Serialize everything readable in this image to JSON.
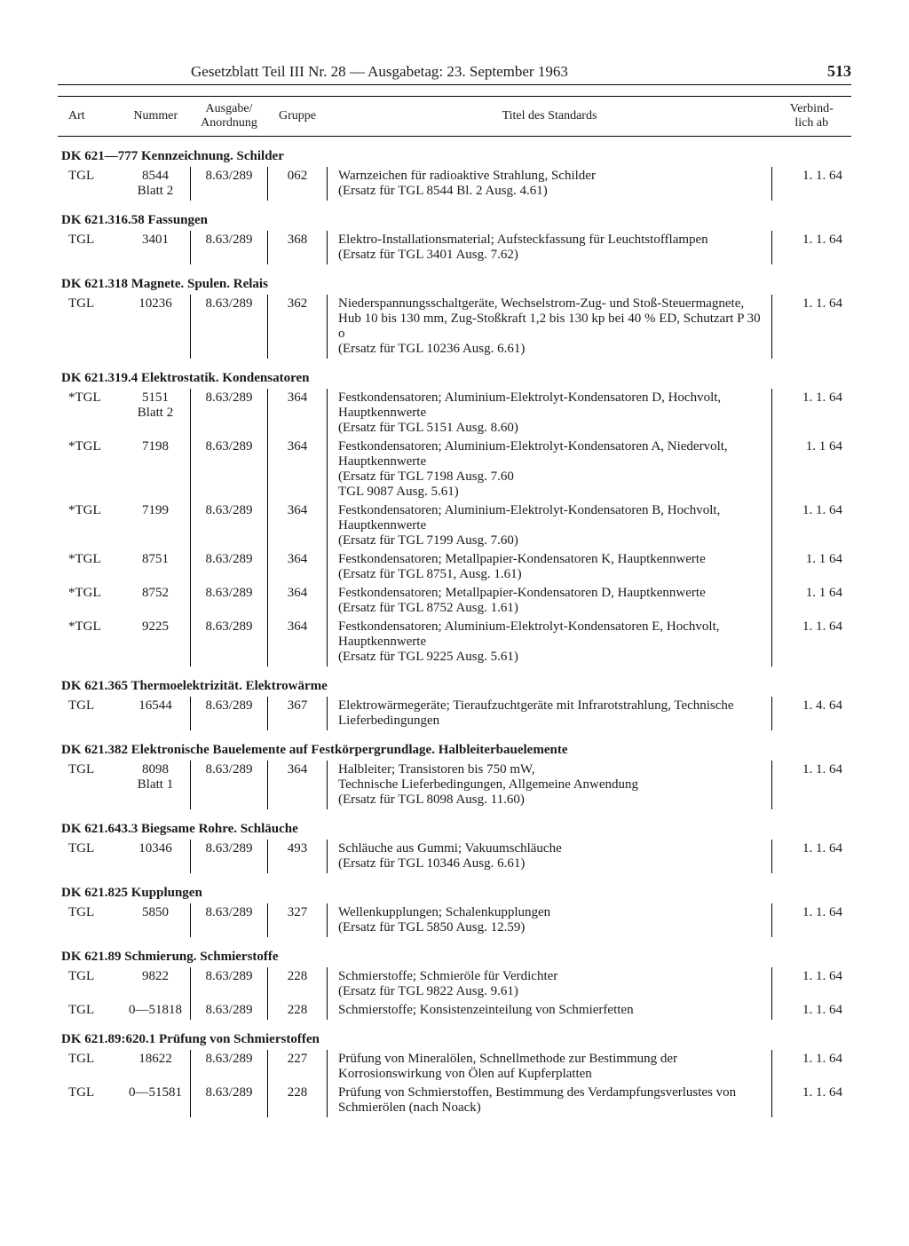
{
  "header": {
    "title": "Gesetzblatt Teil III Nr. 28 — Ausgabetag: 23. September 1963",
    "page_number": "513"
  },
  "columns": {
    "art": "Art",
    "nummer": "Nummer",
    "ausgabe": "Ausgabe/\nAnordnung",
    "gruppe": "Gruppe",
    "titel": "Titel des Standards",
    "verbindlich": "Verbind-\nlich ab"
  },
  "sections": [
    {
      "heading": "DK 621—777 Kennzeichnung. Schilder",
      "rows": [
        {
          "art": "TGL",
          "num": "8544\nBlatt 2",
          "ausg": "8.63/289",
          "grp": "062",
          "titel": "Warnzeichen für radioaktive Strahlung, Schilder\n(Ersatz für TGL 8544 Bl. 2 Ausg. 4.61)",
          "verb": "1.  1. 64"
        }
      ]
    },
    {
      "heading": "DK 621.316.58 Fassungen",
      "rows": [
        {
          "art": "TGL",
          "num": "3401",
          "ausg": "8.63/289",
          "grp": "368",
          "titel": "Elektro-Installationsmaterial; Aufsteckfassung für Leuchtstofflampen\n(Ersatz für TGL 3401 Ausg. 7.62)",
          "verb": "1.  1. 64"
        }
      ]
    },
    {
      "heading": "DK 621.318 Magnete. Spulen. Relais",
      "rows": [
        {
          "art": "TGL",
          "num": "10236",
          "ausg": "8.63/289",
          "grp": "362",
          "titel": "Niederspannungsschaltgeräte, Wechselstrom-Zug- und Stoß-Steuermagnete, Hub 10 bis 130 mm, Zug-Stoßkraft 1,2 bis 130 kp bei 40 % ED, Schutzart P 30 o\n(Ersatz für TGL 10236 Ausg. 6.61)",
          "verb": "1.  1. 64"
        }
      ]
    },
    {
      "heading": "DK 621.319.4 Elektrostatik. Kondensatoren",
      "rows": [
        {
          "art": "*TGL",
          "num": "5151\nBlatt 2",
          "ausg": "8.63/289",
          "grp": "364",
          "titel": "Festkondensatoren; Aluminium-Elektrolyt-Kondensatoren D, Hochvolt, Hauptkennwerte\n(Ersatz für TGL 5151 Ausg. 8.60)",
          "verb": "1.  1. 64"
        },
        {
          "art": "*TGL",
          "num": "7198",
          "ausg": "8.63/289",
          "grp": "364",
          "titel": "Festkondensatoren; Aluminium-Elektrolyt-Kondensatoren A, Niedervolt, Hauptkennwerte\n(Ersatz für TGL 7198 Ausg. 7.60\n                    TGL 9087 Ausg. 5.61)",
          "verb": "1.  1  64"
        },
        {
          "art": "*TGL",
          "num": "7199",
          "ausg": "8.63/289",
          "grp": "364",
          "titel": "Festkondensatoren; Aluminium-Elektrolyt-Kondensatoren B, Hochvolt, Hauptkennwerte\n(Ersatz für TGL 7199 Ausg. 7.60)",
          "verb": "1.  1. 64"
        },
        {
          "art": "*TGL",
          "num": "8751",
          "ausg": "8.63/289",
          "grp": "364",
          "titel": "Festkondensatoren; Metallpapier-Kondensatoren K, Hauptkennwerte\n(Ersatz für TGL 8751, Ausg. 1.61)",
          "verb": "1.  1  64"
        },
        {
          "art": "*TGL",
          "num": "8752",
          "ausg": "8.63/289",
          "grp": "364",
          "titel": "Festkondensatoren; Metallpapier-Kondensatoren D, Hauptkennwerte\n(Ersatz für TGL 8752 Ausg. 1.61)",
          "verb": "1.  1  64"
        },
        {
          "art": "*TGL",
          "num": "9225",
          "ausg": "8.63/289",
          "grp": "364",
          "titel": "Festkondensatoren; Aluminium-Elektrolyt-Kondensatoren E, Hochvolt, Hauptkennwerte\n(Ersatz für TGL 9225 Ausg. 5.61)",
          "verb": "1.  1. 64"
        }
      ]
    },
    {
      "heading": "DK 621.365 Thermoelektrizität. Elektrowärme",
      "rows": [
        {
          "art": "TGL",
          "num": "16544",
          "ausg": "8.63/289",
          "grp": "367",
          "titel": "Elektrowärmegeräte; Tieraufzuchtgeräte mit Infrarotstrahlung, Technische Lieferbedingungen",
          "verb": "1.  4. 64"
        }
      ]
    },
    {
      "heading": "DK 621.382 Elektronische Bauelemente auf Festkörpergrundlage. Halbleiterbauelemente",
      "rows": [
        {
          "art": "TGL",
          "num": "8098\nBlatt 1",
          "ausg": "8.63/289",
          "grp": "364",
          "titel": "Halbleiter; Transistoren bis 750 mW,\nTechnische Lieferbedingungen, Allgemeine Anwendung\n(Ersatz für TGL 8098 Ausg. 11.60)",
          "verb": "1.  1. 64"
        }
      ]
    },
    {
      "heading": "DK 621.643.3 Biegsame Rohre. Schläuche",
      "rows": [
        {
          "art": "TGL",
          "num": "10346",
          "ausg": "8.63/289",
          "grp": "493",
          "titel": "Schläuche aus Gummi; Vakuumschläuche\n(Ersatz für TGL 10346 Ausg. 6.61)",
          "verb": "1.  1. 64"
        }
      ]
    },
    {
      "heading": "DK 621.825 Kupplungen",
      "rows": [
        {
          "art": "TGL",
          "num": "5850",
          "ausg": "8.63/289",
          "grp": "327",
          "titel": "Wellenkupplungen; Schalenkupplungen\n(Ersatz für TGL 5850 Ausg. 12.59)",
          "verb": "1.  1. 64"
        }
      ]
    },
    {
      "heading": "DK 621.89 Schmierung. Schmierstoffe",
      "rows": [
        {
          "art": "TGL",
          "num": "9822",
          "ausg": "8.63/289",
          "grp": "228",
          "titel": "Schmierstoffe; Schmieröle für Verdichter\n(Ersatz für TGL 9822 Ausg. 9.61)",
          "verb": "1.  1. 64"
        },
        {
          "art": "TGL",
          "num": "0—51818",
          "ausg": "8.63/289",
          "grp": "228",
          "titel": "Schmierstoffe; Konsistenzeinteilung von Schmierfetten",
          "verb": "1.  1. 64"
        }
      ]
    },
    {
      "heading": "DK 621.89:620.1 Prüfung von Schmierstoffen",
      "rows": [
        {
          "art": "TGL",
          "num": "18622",
          "ausg": "8.63/289",
          "grp": "227",
          "titel": "Prüfung von Mineralölen, Schnellmethode zur Bestimmung der Korrosionswirkung von Ölen auf Kupferplatten",
          "verb": "1.  1. 64"
        },
        {
          "art": "TGL",
          "num": "0—51581",
          "ausg": "8.63/289",
          "grp": "228",
          "titel": "Prüfung von Schmierstoffen, Bestimmung des Verdampfungsverlustes von Schmierölen (nach Noack)",
          "verb": "1.  1. 64"
        }
      ]
    }
  ]
}
